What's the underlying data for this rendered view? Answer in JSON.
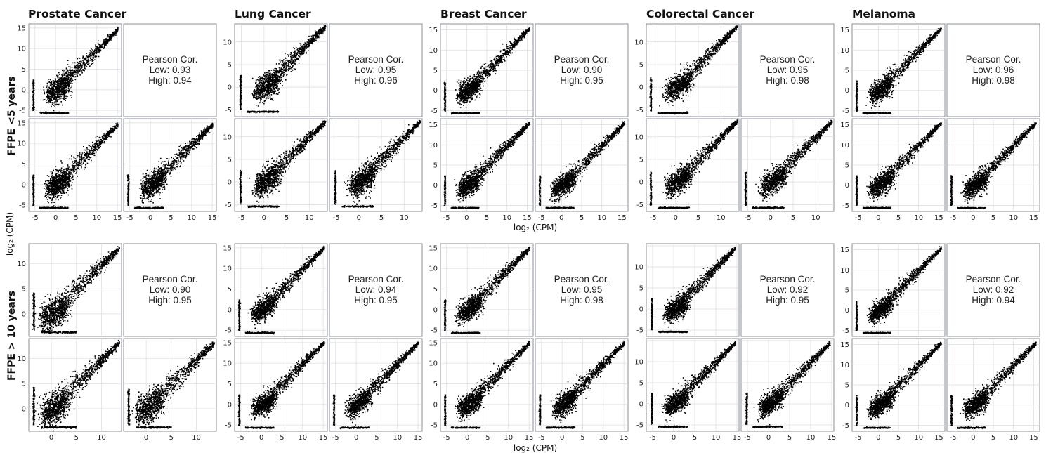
{
  "figure": {
    "x_axis_label": "log₂ (CPM)",
    "y_axis_label": "log₂ (CPM)",
    "row_labels": [
      "FFPE <5 years",
      "FFPE > 10 years"
    ],
    "cancer_types": [
      "Prostate Cancer",
      "Lung Cancer",
      "Breast Cancer",
      "Colorectal Cancer",
      "Melanoma"
    ],
    "correlation_label": "Pearson Cor."
  },
  "chart_data": [
    {
      "type": "scatter",
      "cancer": "Prostate Cancer",
      "group": "FFPE <5 years",
      "pearson": {
        "low": "Low: 0.93",
        "high": "High: 0.94",
        "cross": ""
      },
      "xticks": [
        -5,
        0,
        5,
        10,
        15
      ],
      "yticks": [
        -5,
        0,
        5,
        10,
        15
      ],
      "xlim": [
        -6.5,
        16
      ],
      "ylim": [
        -6.5,
        16
      ],
      "floor": -5.5,
      "slope": 0.98,
      "upper": 15,
      "spread": 1.6
    },
    {
      "type": "scatter",
      "cancer": "Lung Cancer",
      "group": "FFPE <5 years",
      "pearson": {
        "low": "Low: 0.95",
        "high": "High: 0.96",
        "cross": ""
      },
      "xticks": [
        -5,
        0,
        5,
        10
      ],
      "yticks": [
        -5,
        0,
        5,
        10
      ],
      "xlim": [
        -6.5,
        14
      ],
      "ylim": [
        -6.5,
        14
      ],
      "floor": -5.3,
      "slope": 1.0,
      "upper": 13.5,
      "spread": 1.5
    },
    {
      "type": "scatter",
      "cancer": "Breast Cancer",
      "group": "FFPE <5 years",
      "pearson": {
        "low": "Low: 0.90",
        "high": "High: 0.95",
        "cross": ""
      },
      "xticks": [
        -5,
        0,
        5,
        10,
        15
      ],
      "yticks": [
        -5,
        0,
        5,
        10,
        15
      ],
      "xlim": [
        -6.5,
        16.5
      ],
      "ylim": [
        -6.5,
        16.5
      ],
      "floor": -5.5,
      "slope": 1.0,
      "upper": 15.5,
      "spread": 1.4
    },
    {
      "type": "scatter",
      "cancer": "Colorectal Cancer",
      "group": "FFPE <5 years",
      "pearson": {
        "low": "Low: 0.95",
        "high": "High: 0.98",
        "cross": ""
      },
      "xticks": [
        -5,
        0,
        5,
        10
      ],
      "yticks": [
        -5,
        0,
        5,
        10
      ],
      "xlim": [
        -6.5,
        14
      ],
      "ylim": [
        -6.5,
        14
      ],
      "floor": -5.6,
      "slope": 1.0,
      "upper": 13.5,
      "spread": 1.3
    },
    {
      "type": "scatter",
      "cancer": "Melanoma",
      "group": "FFPE <5 years",
      "pearson": {
        "low": "Low: 0.96",
        "high": "High: 0.98",
        "cross": ""
      },
      "xticks": [
        -5,
        0,
        5,
        10,
        15
      ],
      "yticks": [
        -5,
        0,
        5,
        10,
        15
      ],
      "xlim": [
        -6.5,
        16.5
      ],
      "ylim": [
        -6.5,
        16.5
      ],
      "floor": -5.5,
      "slope": 1.0,
      "upper": 15.5,
      "spread": 1.3
    },
    {
      "type": "scatter",
      "cancer": "Prostate Cancer",
      "group": "FFPE > 10 years",
      "pearson": {
        "low": "Low: 0.90",
        "high": "High: 0.95",
        "cross": ""
      },
      "xticks": [
        0,
        5,
        10
      ],
      "yticks": [
        0,
        5,
        10
      ],
      "xlim": [
        -4.5,
        14
      ],
      "ylim": [
        -4.5,
        14
      ],
      "floor": -3.6,
      "slope": 0.98,
      "upper": 13.5,
      "spread": 1.6
    },
    {
      "type": "scatter",
      "cancer": "Lung Cancer",
      "group": "FFPE > 10 years",
      "pearson": {
        "low": "Low: 0.94",
        "high": "High: 0.95",
        "cross": ""
      },
      "xticks": [
        -5,
        0,
        5,
        10,
        15
      ],
      "yticks": [
        -5,
        0,
        5,
        10,
        15
      ],
      "xlim": [
        -6.5,
        16
      ],
      "ylim": [
        -6.5,
        16
      ],
      "floor": -5.5,
      "slope": 1.0,
      "upper": 15,
      "spread": 1.3
    },
    {
      "type": "scatter",
      "cancer": "Breast Cancer",
      "group": "FFPE > 10 years",
      "pearson": {
        "low": "Low: 0.95",
        "high": "High: 0.98",
        "cross": ""
      },
      "xticks": [
        -5,
        0,
        5,
        10,
        15
      ],
      "yticks": [
        -5,
        0,
        5,
        10,
        15
      ],
      "xlim": [
        -6.5,
        16
      ],
      "ylim": [
        -6.5,
        16
      ],
      "floor": -5.5,
      "slope": 1.0,
      "upper": 15,
      "spread": 1.4
    },
    {
      "type": "scatter",
      "cancer": "Colorectal Cancer",
      "group": "FFPE > 10 years",
      "pearson": {
        "low": "Low: 0.92",
        "high": "High: 0.95",
        "cross": ""
      },
      "xticks": [
        -5,
        0,
        5,
        10,
        15
      ],
      "yticks": [
        -5,
        0,
        5,
        10,
        15
      ],
      "xlim": [
        -6.5,
        15.5
      ],
      "ylim": [
        -6.5,
        15.5
      ],
      "floor": -5.3,
      "slope": 1.0,
      "upper": 14.5,
      "spread": 1.3
    },
    {
      "type": "scatter",
      "cancer": "Melanoma",
      "group": "FFPE > 10 years",
      "pearson": {
        "low": "Low: 0.92",
        "high": "High: 0.94",
        "cross": ""
      },
      "xticks": [
        -5,
        0,
        5,
        10,
        15
      ],
      "yticks": [
        -5,
        0,
        5,
        10,
        15
      ],
      "xlim": [
        -6.5,
        16.5
      ],
      "ylim": [
        -6.5,
        16.5
      ],
      "floor": -5.5,
      "slope": 1.0,
      "upper": 15.5,
      "spread": 1.3
    }
  ]
}
